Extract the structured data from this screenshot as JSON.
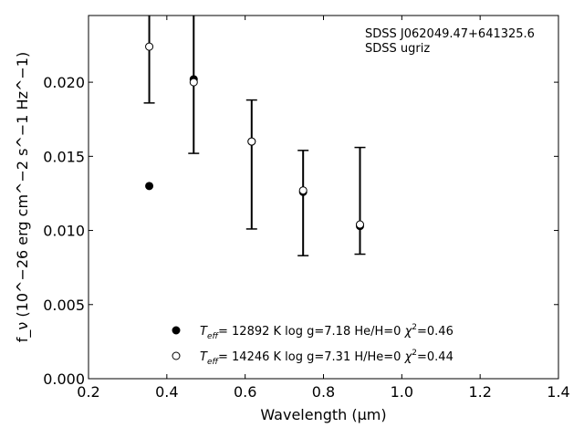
{
  "chart_data": {
    "type": "scatter",
    "annotation": [
      "SDSS J062049.47+641325.6",
      "SDSS ugriz"
    ],
    "xlabel": "Wavelength (μm)",
    "ylabel": "f_ν (10^−26 erg cm^−2 s^−1 Hz^−1)",
    "xlim": [
      0.2,
      1.4
    ],
    "ylim": [
      0.0,
      0.0245
    ],
    "xticks": [
      0.2,
      0.4,
      0.6,
      0.8,
      1.0,
      1.2,
      1.4
    ],
    "xtick_labels": [
      "0.2",
      "0.4",
      "0.6",
      "0.8",
      "1.0",
      "1.2",
      "1.4"
    ],
    "yticks": [
      0.0,
      0.005,
      0.01,
      0.015,
      0.02
    ],
    "ytick_labels": [
      "0.000",
      "0.005",
      "0.010",
      "0.015",
      "0.020"
    ],
    "grid": false,
    "legend_position": "bottom-center",
    "observed": {
      "x": [
        0.3551,
        0.4686,
        0.6166,
        0.748,
        0.8932
      ],
      "y": [
        0.0245,
        0.0245,
        0.016,
        0.0127,
        0.0105
      ],
      "yerr_low": [
        0.0186,
        0.0152,
        0.0101,
        0.0083,
        0.0084
      ],
      "yerr_high": [
        0.0245,
        0.0245,
        0.0188,
        0.0154,
        0.0156
      ]
    },
    "series": [
      {
        "name": "T_eff= 12892 K  log g=7.18  He/H=0  χ²=0.46",
        "marker": "filled",
        "color": "#000000",
        "x": [
          0.3551,
          0.4686,
          0.6166,
          0.748,
          0.8932
        ],
        "y": [
          0.013,
          0.0202,
          0.016,
          0.0126,
          0.0103
        ]
      },
      {
        "name": "T_eff= 14246 K  log g=7.31  H/He=0  χ²=0.44",
        "marker": "open",
        "color": "#000000",
        "x": [
          0.3551,
          0.4686,
          0.6166,
          0.748,
          0.8932
        ],
        "y": [
          0.0224,
          0.02,
          0.016,
          0.0127,
          0.0104
        ]
      }
    ]
  }
}
